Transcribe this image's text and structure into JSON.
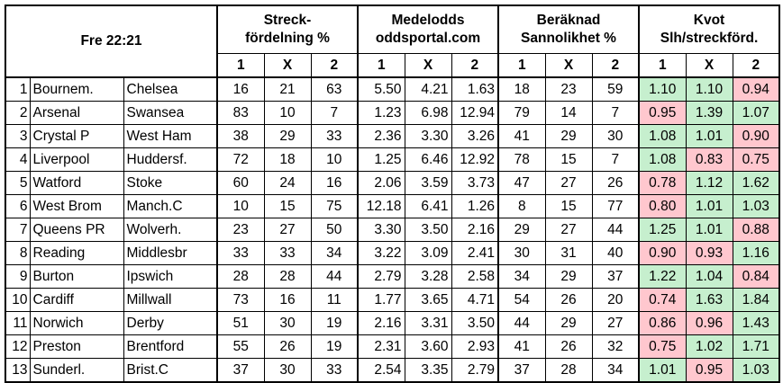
{
  "header": {
    "time_label": "Fre 22:21",
    "groups": [
      {
        "line1": "Streck-",
        "line2": "fördelning %"
      },
      {
        "line1": "Medelodds",
        "line2": "oddsportal.com"
      },
      {
        "line1": "Beräknad",
        "line2": "Sannolikhet %"
      },
      {
        "line1": "Kvot",
        "line2": "Slh/streckförd."
      }
    ],
    "sub_labels": [
      "1",
      "X",
      "2"
    ]
  },
  "colors": {
    "good": "#c6efce",
    "bad": "#ffc7ce"
  },
  "rows": [
    {
      "idx": "1",
      "home": "Bournem.",
      "away": "Chelsea",
      "streck": [
        "16",
        "21",
        "63"
      ],
      "odds": [
        "5.50",
        "4.21",
        "1.63"
      ],
      "prob": [
        "18",
        "23",
        "59"
      ],
      "ratio": [
        "1.10",
        "1.10",
        "0.94"
      ],
      "ratio_good": [
        true,
        true,
        false
      ]
    },
    {
      "idx": "2",
      "home": "Arsenal",
      "away": "Swansea",
      "streck": [
        "83",
        "10",
        "7"
      ],
      "odds": [
        "1.23",
        "6.98",
        "12.94"
      ],
      "prob": [
        "79",
        "14",
        "7"
      ],
      "ratio": [
        "0.95",
        "1.39",
        "1.07"
      ],
      "ratio_good": [
        false,
        true,
        true
      ]
    },
    {
      "idx": "3",
      "home": "Crystal P",
      "away": "West Ham",
      "streck": [
        "38",
        "29",
        "33"
      ],
      "odds": [
        "2.36",
        "3.30",
        "3.26"
      ],
      "prob": [
        "41",
        "29",
        "30"
      ],
      "ratio": [
        "1.08",
        "1.01",
        "0.90"
      ],
      "ratio_good": [
        true,
        true,
        false
      ]
    },
    {
      "idx": "4",
      "home": "Liverpool",
      "away": "Huddersf.",
      "streck": [
        "72",
        "18",
        "10"
      ],
      "odds": [
        "1.25",
        "6.46",
        "12.92"
      ],
      "prob": [
        "78",
        "15",
        "7"
      ],
      "ratio": [
        "1.08",
        "0.83",
        "0.75"
      ],
      "ratio_good": [
        true,
        false,
        false
      ]
    },
    {
      "idx": "5",
      "home": "Watford",
      "away": "Stoke",
      "streck": [
        "60",
        "24",
        "16"
      ],
      "odds": [
        "2.06",
        "3.59",
        "3.73"
      ],
      "prob": [
        "47",
        "27",
        "26"
      ],
      "ratio": [
        "0.78",
        "1.12",
        "1.62"
      ],
      "ratio_good": [
        false,
        true,
        true
      ]
    },
    {
      "idx": "6",
      "home": "West Brom",
      "away": "Manch.C",
      "streck": [
        "10",
        "15",
        "75"
      ],
      "odds": [
        "12.18",
        "6.41",
        "1.26"
      ],
      "prob": [
        "8",
        "15",
        "77"
      ],
      "ratio": [
        "0.80",
        "1.01",
        "1.03"
      ],
      "ratio_good": [
        false,
        true,
        true
      ]
    },
    {
      "idx": "7",
      "home": "Queens PR",
      "away": "Wolverh.",
      "streck": [
        "23",
        "27",
        "50"
      ],
      "odds": [
        "3.30",
        "3.50",
        "2.16"
      ],
      "prob": [
        "29",
        "27",
        "44"
      ],
      "ratio": [
        "1.25",
        "1.01",
        "0.88"
      ],
      "ratio_good": [
        true,
        true,
        false
      ]
    },
    {
      "idx": "8",
      "home": "Reading",
      "away": "Middlesbr",
      "streck": [
        "33",
        "33",
        "34"
      ],
      "odds": [
        "3.22",
        "3.09",
        "2.41"
      ],
      "prob": [
        "30",
        "31",
        "40"
      ],
      "ratio": [
        "0.90",
        "0.93",
        "1.16"
      ],
      "ratio_good": [
        false,
        false,
        true
      ]
    },
    {
      "idx": "9",
      "home": "Burton",
      "away": "Ipswich",
      "streck": [
        "28",
        "28",
        "44"
      ],
      "odds": [
        "2.79",
        "3.28",
        "2.58"
      ],
      "prob": [
        "34",
        "29",
        "37"
      ],
      "ratio": [
        "1.22",
        "1.04",
        "0.84"
      ],
      "ratio_good": [
        true,
        true,
        false
      ]
    },
    {
      "idx": "10",
      "home": "Cardiff",
      "away": "Millwall",
      "streck": [
        "73",
        "16",
        "11"
      ],
      "odds": [
        "1.77",
        "3.65",
        "4.71"
      ],
      "prob": [
        "54",
        "26",
        "20"
      ],
      "ratio": [
        "0.74",
        "1.63",
        "1.84"
      ],
      "ratio_good": [
        false,
        true,
        true
      ]
    },
    {
      "idx": "11",
      "home": "Norwich",
      "away": "Derby",
      "streck": [
        "51",
        "30",
        "19"
      ],
      "odds": [
        "2.16",
        "3.31",
        "3.50"
      ],
      "prob": [
        "44",
        "29",
        "27"
      ],
      "ratio": [
        "0.86",
        "0.96",
        "1.43"
      ],
      "ratio_good": [
        false,
        false,
        true
      ]
    },
    {
      "idx": "12",
      "home": "Preston",
      "away": "Brentford",
      "streck": [
        "55",
        "26",
        "19"
      ],
      "odds": [
        "2.31",
        "3.60",
        "2.93"
      ],
      "prob": [
        "41",
        "26",
        "32"
      ],
      "ratio": [
        "0.75",
        "1.02",
        "1.71"
      ],
      "ratio_good": [
        false,
        true,
        true
      ]
    },
    {
      "idx": "13",
      "home": "Sunderl.",
      "away": "Brist.C",
      "streck": [
        "37",
        "30",
        "33"
      ],
      "odds": [
        "2.54",
        "3.35",
        "2.79"
      ],
      "prob": [
        "37",
        "28",
        "34"
      ],
      "ratio": [
        "1.01",
        "0.95",
        "1.03"
      ],
      "ratio_good": [
        true,
        false,
        true
      ]
    }
  ]
}
